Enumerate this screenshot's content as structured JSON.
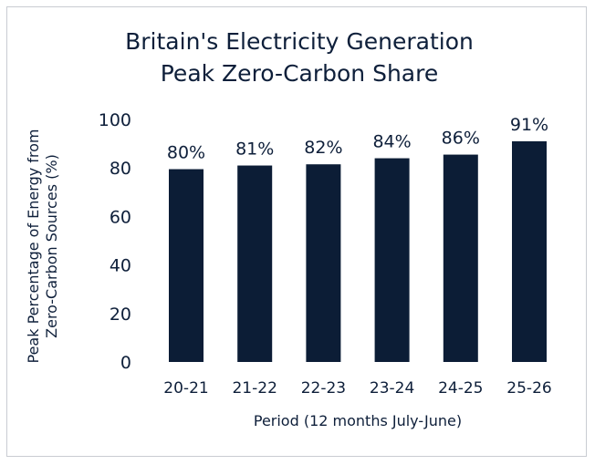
{
  "chart_data": {
    "type": "bar",
    "title_lines": [
      "Britain's Electricity Generation",
      "Peak Zero-Carbon Share"
    ],
    "xlabel": "Period (12 months July-June)",
    "ylabel_lines": [
      "Peak Percentage of Energy from",
      "Zero-Carbon Sources (%)"
    ],
    "categories": [
      "20-21",
      "21-22",
      "22-23",
      "23-24",
      "24-25",
      "25-26"
    ],
    "values": [
      79.5,
      81,
      81.5,
      84,
      85.5,
      91
    ],
    "data_labels": [
      "80%",
      "81%",
      "82%",
      "84%",
      "86%",
      "91%"
    ],
    "ylim": [
      0,
      100
    ],
    "yticks": [
      0,
      20,
      40,
      60,
      80,
      100
    ],
    "grid": false,
    "legend": "none",
    "bar_color": "#0c1d36",
    "text_color": "#0e1f3a"
  }
}
